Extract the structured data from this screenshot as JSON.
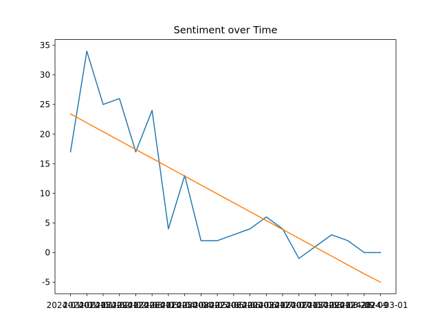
{
  "chart_data": {
    "type": "line",
    "title": "Sentiment over Time",
    "xlabel": "",
    "ylabel": "",
    "x": [
      "2024-01-01",
      "2024-01-08",
      "2024-01-15",
      "2024-01-22",
      "2024-01-29",
      "2024-02-05",
      "2024-02-12",
      "2024-02-19",
      "2024-02-26",
      "2024-03-04",
      "2024-03-11",
      "2024-03-18",
      "2024-03-25",
      "2024-04-01",
      "2024-04-08",
      "2024-04-15",
      "2024-04-22",
      "2024-04-29",
      "2024-05-06",
      "2024-05-13"
    ],
    "x_tick_labels": [
      "2024-01-01",
      "2024-01-15",
      "2024-01-29",
      "2024-02-12",
      "2024-02-26",
      "2024-03-11",
      "2024-03-25",
      "2024-04-08",
      "2024-04-22",
      "2024-05-06",
      "2024-05-20",
      "2024-06-03",
      "2024-06-17",
      "2024-07-01",
      "2024-07-15",
      "2024-07-29",
      "2024-08-12",
      "2024-08-26",
      "2024-09-09",
      "2024-03-01"
    ],
    "series": [
      {
        "color": "#1f77b4",
        "values": [
          17,
          34,
          25,
          26,
          17,
          24,
          4,
          13,
          2,
          2,
          3,
          4,
          6,
          4,
          -1,
          1,
          3,
          2,
          0,
          0
        ]
      },
      {
        "color": "#ff7f0e",
        "values": [
          23.4,
          21.9,
          20.4,
          18.9,
          17.4,
          15.9,
          14.4,
          12.9,
          11.4,
          9.9,
          8.4,
          6.9,
          5.4,
          3.9,
          2.4,
          0.9,
          -0.6,
          -2.1,
          -3.6,
          -5.0
        ]
      }
    ],
    "ylim": [
      -6.95,
      35.95
    ],
    "yticks": [
      -5,
      0,
      5,
      10,
      15,
      20,
      25,
      30,
      35
    ],
    "grid": false,
    "legend": "none"
  }
}
